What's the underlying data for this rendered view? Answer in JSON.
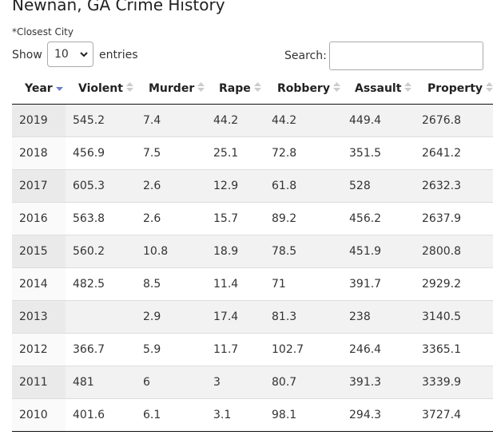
{
  "header": {
    "title": "Newnan, GA Crime History",
    "note": "*Closest City"
  },
  "controls": {
    "show_label": "Show",
    "page_size": "10",
    "entries_label": "entries",
    "search_label": "Search:"
  },
  "table": {
    "columns": [
      "Year",
      "Violent",
      "Murder",
      "Rape",
      "Robbery",
      "Assault",
      "Property"
    ],
    "rows": [
      [
        2019,
        545.2,
        7.4,
        44.2,
        44.2,
        449.4,
        2676.8
      ],
      [
        2018,
        456.9,
        7.5,
        25.1,
        72.8,
        351.5,
        2641.2
      ],
      [
        2017,
        605.3,
        2.6,
        12.9,
        61.8,
        528,
        2632.3
      ],
      [
        2016,
        563.8,
        2.6,
        15.7,
        89.2,
        456.2,
        2637.9
      ],
      [
        2015,
        560.2,
        10.8,
        18.9,
        78.5,
        451.9,
        2800.8
      ],
      [
        2014,
        482.5,
        8.5,
        11.4,
        71,
        391.7,
        2929.2
      ],
      [
        2013,
        null,
        2.9,
        17.4,
        81.3,
        238,
        3140.5
      ],
      [
        2012,
        366.7,
        5.9,
        11.7,
        102.7,
        246.4,
        3365.1
      ],
      [
        2011,
        481,
        6,
        3,
        80.7,
        391.3,
        3339.9
      ],
      [
        2010,
        401.6,
        6.1,
        3.1,
        98.1,
        294.3,
        3727.4
      ]
    ]
  }
}
